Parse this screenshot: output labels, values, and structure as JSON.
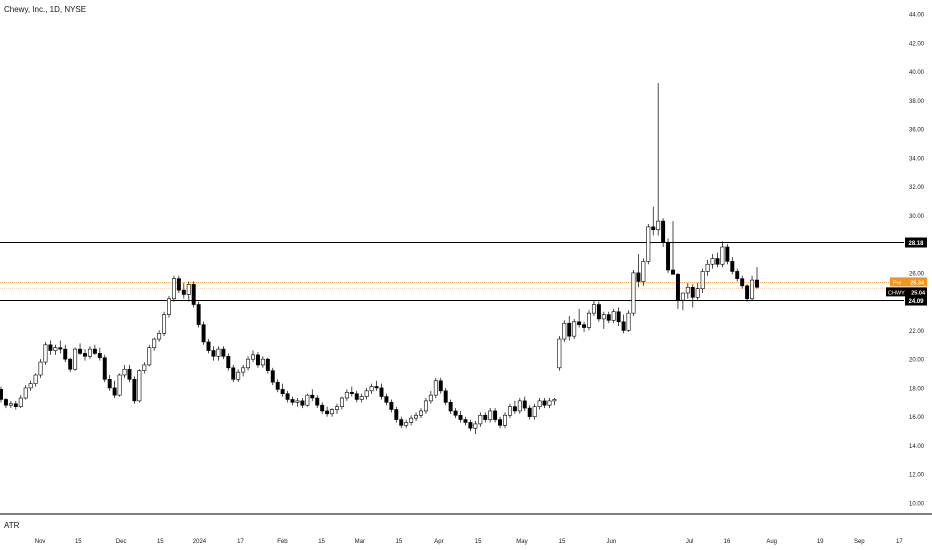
{
  "header": {
    "title": "Chewy, Inc., 1D, NYSE"
  },
  "indicator": {
    "label": "ATR"
  },
  "colors": {
    "candle_up": "#ffffff",
    "candle_down": "#000000",
    "candle_border": "#000000",
    "level_line": "#000000",
    "pre_market": "#f7931a",
    "last_price_tag": "#000000",
    "axis_text": "#131722"
  },
  "chart_data": {
    "type": "candlestick",
    "symbol": "CHWY",
    "ylim": [
      10,
      44
    ],
    "y_ticks": [
      "10.00",
      "12.00",
      "14.00",
      "16.00",
      "18.00",
      "20.00",
      "22.00",
      "24.00",
      "26.00",
      "28.00",
      "30.00",
      "32.00",
      "34.00",
      "36.00",
      "38.00",
      "40.00",
      "42.00",
      "44.00"
    ],
    "x_ticks": [
      "Nov",
      "15",
      "Dec",
      "15",
      "2024",
      "17",
      "Feb",
      "15",
      "Mar",
      "15",
      "Apr",
      "15",
      "May",
      "15",
      "Jun",
      "Jul",
      "16",
      "Aug",
      "19",
      "Sep",
      "17"
    ],
    "x_tick_positions": [
      0.043,
      0.084,
      0.13,
      0.172,
      0.214,
      0.258,
      0.303,
      0.345,
      0.386,
      0.428,
      0.471,
      0.513,
      0.56,
      0.603,
      0.656,
      0.74,
      0.78,
      0.828,
      0.88,
      0.922,
      0.965
    ],
    "horizontal_levels": [
      {
        "label": "28.18",
        "value": 28.18
      },
      {
        "label": "24.09",
        "value": 24.09
      }
    ],
    "price_tags": [
      {
        "label": "Pre",
        "value": "25.34"
      },
      {
        "label": "CHWY",
        "value": "25.04"
      }
    ],
    "pre_market_price": 25.34,
    "last_price": 25.04,
    "candles": [
      [
        17.9,
        18.1,
        17.0,
        17.2
      ],
      [
        17.2,
        17.3,
        16.6,
        16.8
      ],
      [
        16.8,
        17.1,
        16.6,
        16.9
      ],
      [
        16.9,
        17.1,
        16.5,
        16.7
      ],
      [
        16.7,
        17.5,
        16.6,
        17.3
      ],
      [
        17.3,
        18.2,
        17.2,
        18.0
      ],
      [
        18.0,
        18.5,
        17.8,
        18.3
      ],
      [
        18.3,
        19.0,
        18.1,
        18.9
      ],
      [
        18.9,
        20.0,
        18.7,
        19.8
      ],
      [
        19.8,
        21.2,
        19.6,
        21.0
      ],
      [
        21.0,
        21.3,
        20.3,
        20.6
      ],
      [
        20.6,
        21.0,
        20.3,
        20.8
      ],
      [
        20.8,
        21.3,
        20.4,
        20.7
      ],
      [
        20.7,
        21.0,
        19.8,
        20.0
      ],
      [
        20.0,
        20.1,
        19.1,
        19.3
      ],
      [
        19.3,
        20.8,
        19.2,
        20.7
      ],
      [
        20.7,
        21.1,
        20.3,
        20.4
      ],
      [
        20.4,
        20.7,
        19.9,
        20.2
      ],
      [
        20.2,
        20.9,
        20.0,
        20.7
      ],
      [
        20.7,
        21.0,
        20.3,
        20.4
      ],
      [
        20.4,
        20.8,
        19.9,
        20.1
      ],
      [
        20.1,
        20.3,
        18.4,
        18.6
      ],
      [
        18.6,
        18.9,
        17.8,
        18.0
      ],
      [
        18.0,
        18.5,
        17.3,
        17.5
      ],
      [
        17.5,
        19.0,
        17.4,
        18.9
      ],
      [
        18.9,
        19.6,
        18.7,
        19.3
      ],
      [
        19.3,
        19.6,
        18.4,
        18.6
      ],
      [
        18.6,
        18.8,
        16.9,
        17.1
      ],
      [
        17.1,
        19.3,
        17.0,
        19.2
      ],
      [
        19.2,
        19.8,
        19.0,
        19.6
      ],
      [
        19.6,
        21.0,
        19.5,
        20.8
      ],
      [
        20.8,
        21.5,
        20.6,
        21.4
      ],
      [
        21.4,
        22.0,
        21.2,
        21.8
      ],
      [
        21.8,
        23.3,
        21.6,
        23.1
      ],
      [
        23.1,
        24.4,
        22.9,
        24.2
      ],
      [
        24.2,
        25.8,
        24.0,
        25.6
      ],
      [
        25.6,
        25.8,
        24.6,
        24.8
      ],
      [
        24.8,
        25.3,
        24.2,
        24.5
      ],
      [
        24.5,
        25.4,
        24.0,
        25.2
      ],
      [
        25.2,
        25.4,
        23.6,
        23.8
      ],
      [
        23.8,
        24.0,
        22.2,
        22.4
      ],
      [
        22.4,
        22.6,
        21.0,
        21.2
      ],
      [
        21.2,
        21.4,
        20.4,
        20.6
      ],
      [
        20.6,
        20.9,
        19.9,
        20.2
      ],
      [
        20.2,
        20.9,
        19.9,
        20.7
      ],
      [
        20.7,
        20.9,
        20.0,
        20.2
      ],
      [
        20.2,
        20.4,
        19.2,
        19.4
      ],
      [
        19.4,
        19.6,
        18.4,
        18.6
      ],
      [
        18.6,
        19.3,
        18.4,
        19.1
      ],
      [
        19.1,
        19.6,
        18.8,
        19.4
      ],
      [
        19.4,
        20.2,
        19.2,
        20.0
      ],
      [
        20.0,
        20.6,
        19.8,
        20.3
      ],
      [
        20.3,
        20.5,
        19.4,
        19.6
      ],
      [
        19.6,
        20.2,
        19.4,
        20.0
      ],
      [
        20.0,
        20.1,
        19.0,
        19.2
      ],
      [
        19.2,
        19.4,
        18.2,
        18.4
      ],
      [
        18.4,
        18.6,
        17.7,
        17.9
      ],
      [
        17.9,
        18.3,
        17.4,
        17.6
      ],
      [
        17.6,
        17.8,
        17.0,
        17.2
      ],
      [
        17.2,
        17.4,
        16.8,
        17.0
      ],
      [
        17.0,
        17.3,
        16.7,
        17.1
      ],
      [
        17.1,
        17.3,
        16.6,
        16.8
      ],
      [
        16.8,
        17.6,
        16.7,
        17.5
      ],
      [
        17.5,
        17.9,
        17.1,
        17.3
      ],
      [
        17.3,
        17.5,
        16.6,
        16.8
      ],
      [
        16.8,
        17.0,
        16.2,
        16.4
      ],
      [
        16.4,
        16.7,
        16.0,
        16.2
      ],
      [
        16.2,
        16.6,
        16.0,
        16.5
      ],
      [
        16.5,
        16.9,
        16.2,
        16.7
      ],
      [
        16.7,
        17.4,
        16.5,
        17.3
      ],
      [
        17.3,
        17.9,
        17.1,
        17.7
      ],
      [
        17.7,
        18.1,
        17.4,
        17.6
      ],
      [
        17.6,
        17.8,
        17.0,
        17.2
      ],
      [
        17.2,
        17.6,
        17.0,
        17.4
      ],
      [
        17.4,
        18.0,
        17.2,
        17.8
      ],
      [
        17.8,
        18.3,
        17.6,
        18.1
      ],
      [
        18.1,
        18.5,
        17.8,
        18.0
      ],
      [
        18.0,
        18.3,
        17.2,
        17.4
      ],
      [
        17.4,
        17.6,
        16.8,
        17.0
      ],
      [
        17.0,
        17.2,
        16.3,
        16.5
      ],
      [
        16.5,
        16.7,
        15.6,
        15.8
      ],
      [
        15.8,
        16.0,
        15.2,
        15.4
      ],
      [
        15.4,
        15.8,
        15.2,
        15.6
      ],
      [
        15.6,
        16.1,
        15.4,
        15.9
      ],
      [
        15.9,
        16.3,
        15.7,
        16.1
      ],
      [
        16.1,
        16.6,
        15.9,
        16.4
      ],
      [
        16.4,
        17.3,
        16.2,
        17.1
      ],
      [
        17.1,
        17.8,
        16.9,
        17.5
      ],
      [
        17.5,
        18.7,
        17.3,
        18.5
      ],
      [
        18.5,
        18.7,
        17.6,
        17.8
      ],
      [
        17.8,
        18.0,
        16.8,
        17.0
      ],
      [
        17.0,
        17.2,
        16.2,
        16.4
      ],
      [
        16.4,
        16.6,
        15.9,
        16.1
      ],
      [
        16.1,
        16.4,
        15.6,
        15.8
      ],
      [
        15.8,
        16.0,
        15.4,
        15.6
      ],
      [
        15.6,
        15.8,
        15.0,
        15.2
      ],
      [
        15.2,
        15.7,
        14.8,
        15.5
      ],
      [
        15.5,
        16.3,
        15.3,
        16.1
      ],
      [
        16.1,
        16.3,
        15.6,
        15.8
      ],
      [
        15.8,
        16.6,
        15.6,
        16.4
      ],
      [
        16.4,
        16.6,
        15.6,
        15.8
      ],
      [
        15.8,
        16.0,
        15.2,
        15.4
      ],
      [
        15.4,
        16.3,
        15.2,
        16.1
      ],
      [
        16.1,
        16.9,
        15.9,
        16.7
      ],
      [
        16.7,
        17.1,
        16.2,
        16.4
      ],
      [
        16.4,
        17.3,
        16.2,
        17.1
      ],
      [
        17.1,
        17.4,
        16.4,
        16.6
      ],
      [
        16.6,
        16.8,
        15.8,
        16.0
      ],
      [
        16.0,
        16.9,
        15.8,
        16.7
      ],
      [
        16.7,
        17.3,
        16.5,
        17.1
      ],
      [
        17.1,
        17.3,
        16.6,
        16.8
      ],
      [
        16.8,
        17.3,
        16.6,
        17.1
      ],
      [
        17.1,
        17.3,
        16.8,
        17.2
      ],
      [
        19.4,
        21.6,
        19.2,
        21.4
      ],
      [
        21.4,
        22.7,
        21.2,
        22.5
      ],
      [
        22.5,
        23.0,
        21.3,
        21.6
      ],
      [
        21.6,
        22.8,
        21.4,
        22.6
      ],
      [
        22.6,
        23.5,
        22.2,
        22.4
      ],
      [
        22.4,
        22.6,
        21.9,
        22.2
      ],
      [
        22.2,
        23.4,
        22.0,
        23.2
      ],
      [
        23.2,
        24.1,
        23.0,
        23.8
      ],
      [
        23.8,
        24.0,
        22.6,
        22.8
      ],
      [
        22.8,
        23.3,
        22.1,
        23.1
      ],
      [
        23.1,
        23.3,
        22.5,
        22.7
      ],
      [
        22.7,
        23.5,
        22.5,
        23.3
      ],
      [
        23.3,
        23.6,
        22.3,
        22.6
      ],
      [
        22.6,
        23.1,
        21.8,
        22.0
      ],
      [
        22.0,
        23.4,
        21.9,
        23.2
      ],
      [
        23.2,
        26.2,
        23.0,
        26.0
      ],
      [
        26.0,
        27.3,
        25.0,
        25.4
      ],
      [
        25.4,
        27.0,
        25.1,
        26.8
      ],
      [
        26.8,
        29.4,
        26.6,
        29.2
      ],
      [
        29.2,
        30.6,
        28.6,
        29.0
      ],
      [
        29.0,
        39.2,
        28.6,
        29.6
      ],
      [
        29.6,
        29.8,
        27.8,
        28.1
      ],
      [
        28.1,
        28.4,
        26.0,
        26.2
      ],
      [
        26.2,
        29.6,
        26.0,
        25.9
      ],
      [
        25.9,
        26.0,
        23.5,
        24.1
      ],
      [
        24.1,
        24.3,
        23.4,
        24.6
      ],
      [
        24.6,
        25.3,
        24.2,
        25.0
      ],
      [
        25.0,
        25.2,
        23.6,
        24.3
      ],
      [
        24.3,
        25.3,
        24.1,
        24.9
      ],
      [
        24.9,
        26.3,
        24.6,
        26.1
      ],
      [
        26.1,
        26.9,
        25.8,
        26.6
      ],
      [
        26.6,
        27.3,
        26.3,
        27.0
      ],
      [
        27.0,
        27.4,
        26.4,
        26.6
      ],
      [
        26.6,
        28.2,
        26.4,
        27.8
      ],
      [
        27.8,
        28.0,
        26.6,
        26.8
      ],
      [
        26.8,
        27.1,
        25.9,
        26.1
      ],
      [
        26.1,
        26.3,
        25.4,
        25.6
      ],
      [
        25.6,
        25.8,
        24.9,
        25.1
      ],
      [
        25.1,
        25.2,
        24.0,
        24.2
      ],
      [
        24.2,
        25.8,
        24.1,
        25.5
      ],
      [
        25.5,
        26.4,
        24.9,
        25.0
      ]
    ]
  }
}
